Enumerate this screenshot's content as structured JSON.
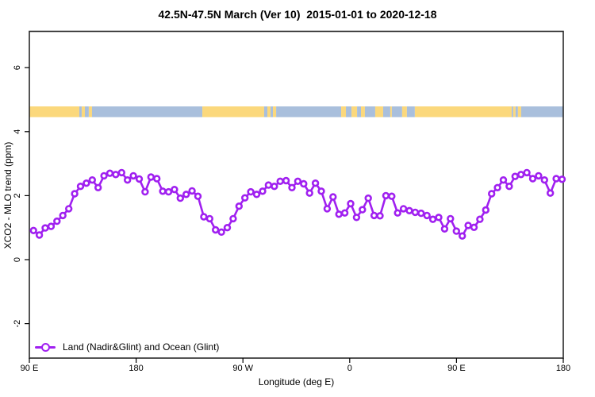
{
  "title": "42.5N-47.5N March (Ver 10)  2015-01-01 to 2020-12-18",
  "axes": {
    "x_label": "Longitude (deg E)",
    "y_label": "XCO2 - MLO trend (ppm)",
    "x_tick_labels": [
      "90 E",
      "180",
      "90 W",
      "0",
      "90 E",
      "180"
    ],
    "x_tick_positions_deg": [
      90,
      180,
      270,
      360,
      450,
      540
    ],
    "y_tick_labels": [
      "6",
      "4",
      "2",
      "0",
      "-2"
    ],
    "y_tick_values": [
      6,
      4,
      2,
      0,
      -2
    ]
  },
  "legend": {
    "label": "Land (Nadir&Glint) and Ocean (Glint)"
  },
  "colors": {
    "series": "#A020F0",
    "land": "#FBD87C",
    "ocean": "#A9BFDC",
    "axis": "#000000",
    "box": "#2a2a2a"
  },
  "chart_data": {
    "type": "line",
    "title": "42.5N-47.5N March (Ver 10)  2015-01-01 to 2020-12-18",
    "xlabel": "Longitude (deg E)",
    "ylabel": "XCO2 - MLO trend (ppm)",
    "x_axis_note": "longitude axis wraps eastward: 90E -> 180 -> 90W -> 0 -> 90E -> 180 (90 to 540 deg E)",
    "x_range_deg": [
      90,
      540
    ],
    "ylim": [
      -3.1,
      7.1
    ],
    "grid": false,
    "legend_position": "bottom-left",
    "marker": "open-circle",
    "lon_start_deg": 93.5,
    "lon_step_deg": 4.95,
    "series": [
      {
        "name": "Land (Nadir&Glint) and Ocean (Glint)",
        "values": [
          0.91,
          0.77,
          0.99,
          1.04,
          1.2,
          1.38,
          1.59,
          2.06,
          2.29,
          2.39,
          2.49,
          2.25,
          2.62,
          2.7,
          2.66,
          2.72,
          2.49,
          2.62,
          2.52,
          2.12,
          2.58,
          2.53,
          2.14,
          2.12,
          2.19,
          1.92,
          2.04,
          2.15,
          1.98,
          1.34,
          1.28,
          0.93,
          0.86,
          1.0,
          1.28,
          1.67,
          1.93,
          2.12,
          2.04,
          2.14,
          2.33,
          2.29,
          2.45,
          2.47,
          2.25,
          2.45,
          2.37,
          2.08,
          2.39,
          2.14,
          1.59,
          1.96,
          1.42,
          1.46,
          1.75,
          1.32,
          1.56,
          1.92,
          1.38,
          1.37,
          2.0,
          1.98,
          1.46,
          1.59,
          1.53,
          1.48,
          1.45,
          1.38,
          1.26,
          1.32,
          0.96,
          1.28,
          0.89,
          0.74,
          1.07,
          1.01,
          1.26,
          1.55,
          2.06,
          2.25,
          2.49,
          2.29,
          2.6,
          2.66,
          2.72,
          2.53,
          2.62,
          2.49,
          2.08,
          2.53,
          2.51
        ]
      }
    ],
    "land_ocean_band": {
      "description": "horizontal land/ocean strip drawn across plot",
      "center_value_ppm": 4.6,
      "segments_deg": [
        [
          90.0,
          132.1,
          "land"
        ],
        [
          132.1,
          134.1,
          "ocean"
        ],
        [
          134.1,
          136.8,
          "land"
        ],
        [
          136.8,
          140.1,
          "ocean"
        ],
        [
          140.1,
          142.8,
          "land"
        ],
        [
          142.8,
          235.8,
          "ocean"
        ],
        [
          235.8,
          287.9,
          "land"
        ],
        [
          287.9,
          290.6,
          "ocean"
        ],
        [
          290.6,
          293.3,
          "land"
        ],
        [
          293.3,
          295.3,
          "ocean"
        ],
        [
          295.3,
          298.0,
          "land"
        ],
        [
          298.0,
          352.8,
          "ocean"
        ],
        [
          352.8,
          356.8,
          "land"
        ],
        [
          356.8,
          361.5,
          "ocean"
        ],
        [
          361.5,
          366.2,
          "land"
        ],
        [
          366.2,
          369.5,
          "ocean"
        ],
        [
          369.5,
          372.8,
          "land"
        ],
        [
          372.8,
          381.5,
          "ocean"
        ],
        [
          381.5,
          388.2,
          "land"
        ],
        [
          388.2,
          394.2,
          "ocean"
        ],
        [
          394.2,
          395.5,
          "land"
        ],
        [
          395.5,
          404.2,
          "ocean"
        ],
        [
          404.2,
          408.2,
          "land"
        ],
        [
          408.2,
          414.9,
          "ocean"
        ],
        [
          414.9,
          496.5,
          "land"
        ],
        [
          496.5,
          497.8,
          "ocean"
        ],
        [
          497.8,
          499.8,
          "land"
        ],
        [
          499.8,
          501.8,
          "ocean"
        ],
        [
          501.8,
          504.5,
          "land"
        ],
        [
          504.5,
          540.0,
          "ocean"
        ]
      ]
    }
  }
}
